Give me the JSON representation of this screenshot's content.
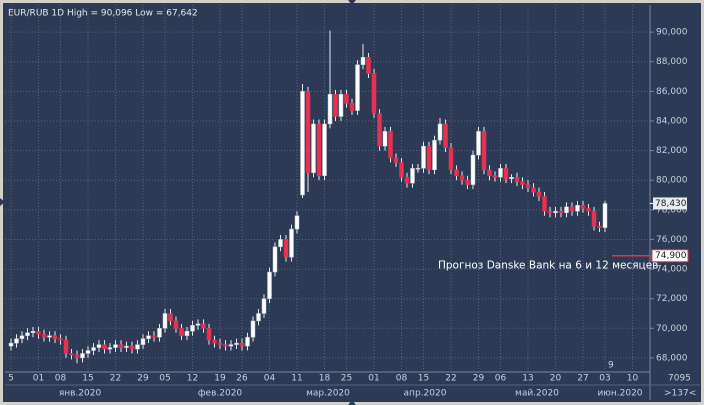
{
  "chart_data": {
    "type": "candlestick",
    "title": "EUR/RUB 1D High = 90,096 Low = 67,642",
    "categories": [
      "5",
      null,
      null,
      null,
      null,
      "01",
      null,
      null,
      null,
      "08",
      null,
      null,
      null,
      null,
      "15",
      null,
      null,
      null,
      null,
      "22",
      null,
      null,
      null,
      null,
      "29",
      null,
      null,
      null,
      "05",
      null,
      null,
      null,
      null,
      "12",
      null,
      null,
      null,
      null,
      "19",
      null,
      null,
      null,
      "26",
      null,
      null,
      null,
      null,
      "04",
      null,
      null,
      null,
      null,
      "11",
      null,
      null,
      null,
      null,
      "18",
      null,
      null,
      null,
      "25",
      null,
      null,
      null,
      null,
      "01",
      null,
      null,
      null,
      null,
      "08",
      null,
      null,
      null,
      "15",
      null,
      null,
      null,
      null,
      "22",
      null,
      null,
      null,
      null,
      "29",
      null,
      null,
      null,
      "06",
      null,
      null,
      null,
      null,
      "13",
      null,
      null,
      null,
      null,
      "20",
      null,
      null,
      null,
      null,
      "27",
      null,
      null,
      null,
      "03",
      null,
      null,
      null,
      null,
      "10"
    ],
    "months": [
      "янв.2020",
      "фев.2020",
      "мар.2020",
      "апр.2020",
      "май.2020",
      "июн.2020"
    ],
    "open": [
      68800,
      69000,
      69300,
      69500,
      69700,
      69800,
      69600,
      69400,
      69500,
      69300,
      69200,
      68300,
      68200,
      68000,
      68300,
      68500,
      68700,
      68900,
      68600,
      68700,
      68900,
      68700,
      68800,
      68600,
      68900,
      69300,
      69500,
      69400,
      70000,
      71000,
      70500,
      70000,
      69500,
      69800,
      70200,
      70300,
      70000,
      69200,
      69000,
      68900,
      68800,
      68900,
      69000,
      68800,
      69400,
      70500,
      71000,
      72000,
      73800,
      75500,
      76000,
      74800,
      76700,
      79000,
      86000,
      80500,
      83800,
      80300,
      83800,
      85800,
      84300,
      85800,
      85200,
      84700,
      87800,
      88300,
      87200,
      84500,
      82300,
      83300,
      81500,
      81200,
      80200,
      79800,
      80800,
      80800,
      82300,
      80700,
      82700,
      83800,
      82200,
      80700,
      80300,
      80000,
      79700,
      81700,
      83300,
      80700,
      80300,
      80200,
      80800,
      80100,
      80200,
      79900,
      79700,
      79500,
      79200,
      78900,
      77900,
      77800,
      77900,
      77800,
      78200,
      77900,
      78300,
      78100,
      77900,
      76900,
      76800,
      null,
      null,
      null,
      null,
      null
    ],
    "high": [
      69300,
      69600,
      69800,
      70000,
      70100,
      70100,
      69900,
      69800,
      69800,
      69600,
      69500,
      68600,
      68500,
      68600,
      68800,
      69000,
      69200,
      69200,
      69000,
      69200,
      69200,
      69100,
      69100,
      69200,
      69600,
      69800,
      69800,
      70300,
      71300,
      71300,
      70800,
      70300,
      70100,
      70500,
      70600,
      70600,
      70300,
      69500,
      69300,
      69200,
      69200,
      69300,
      69300,
      69700,
      70800,
      71300,
      72300,
      74100,
      75800,
      76300,
      76300,
      77000,
      77900,
      86500,
      86300,
      84100,
      84100,
      84100,
      90096,
      86100,
      86100,
      86100,
      85500,
      88100,
      89200,
      88600,
      87500,
      84800,
      83600,
      83600,
      81800,
      81500,
      80500,
      81100,
      81100,
      82600,
      82600,
      83000,
      84200,
      84100,
      82500,
      81000,
      80600,
      80300,
      82000,
      83600,
      83600,
      81000,
      80600,
      81100,
      81100,
      80400,
      80500,
      80200,
      80000,
      79800,
      79500,
      79200,
      78200,
      78200,
      78200,
      78500,
      78500,
      78600,
      78600,
      78400,
      78200,
      77200,
      78600,
      null,
      null,
      null,
      null,
      null
    ],
    "low": [
      68500,
      68700,
      69000,
      69200,
      69400,
      69300,
      69100,
      69100,
      69000,
      68900,
      68000,
      67900,
      67642,
      67700,
      68000,
      68200,
      68400,
      68300,
      68300,
      68400,
      68400,
      68400,
      68300,
      68300,
      68600,
      69000,
      69100,
      69100,
      69700,
      70200,
      69700,
      69200,
      69200,
      69500,
      69900,
      69700,
      68900,
      68700,
      68600,
      68500,
      68500,
      68600,
      68500,
      68500,
      69100,
      70200,
      70700,
      71700,
      73500,
      75200,
      74500,
      74500,
      76400,
      78800,
      79200,
      80200,
      80000,
      80000,
      83500,
      84000,
      84000,
      84900,
      84400,
      84400,
      87500,
      86900,
      84200,
      82000,
      82000,
      81200,
      80900,
      79900,
      79500,
      79500,
      80500,
      80500,
      80400,
      80400,
      82400,
      81900,
      80400,
      80000,
      79700,
      79400,
      79400,
      81400,
      80400,
      80000,
      79900,
      79900,
      79800,
      79800,
      79600,
      79400,
      79200,
      78900,
      78600,
      77600,
      77500,
      77500,
      77500,
      77500,
      77600,
      77600,
      77800,
      77600,
      76600,
      76500,
      76500,
      null,
      null,
      null,
      null,
      null
    ],
    "close": [
      69000,
      69300,
      69500,
      69700,
      69800,
      69600,
      69400,
      69500,
      69300,
      69200,
      68300,
      68200,
      68000,
      68300,
      68500,
      68700,
      68900,
      68600,
      68700,
      68900,
      68700,
      68800,
      68600,
      68900,
      69300,
      69500,
      69400,
      70000,
      71000,
      70500,
      70000,
      69500,
      69800,
      70200,
      70300,
      70000,
      69200,
      69000,
      68900,
      68800,
      68900,
      69000,
      68800,
      69400,
      70500,
      71000,
      72000,
      73800,
      75500,
      76000,
      74800,
      76700,
      77600,
      86000,
      80500,
      83800,
      80300,
      83800,
      85800,
      84300,
      85800,
      85200,
      84700,
      87800,
      88300,
      87200,
      84500,
      82300,
      83300,
      81500,
      81200,
      80200,
      79800,
      80800,
      80800,
      82300,
      80700,
      82700,
      83800,
      82200,
      80700,
      80300,
      80000,
      79700,
      81700,
      83300,
      80700,
      80300,
      80200,
      80800,
      80100,
      80200,
      79900,
      79700,
      79500,
      79200,
      78900,
      77900,
      77800,
      77900,
      77800,
      78200,
      77900,
      78300,
      78100,
      77900,
      76900,
      76800,
      78430,
      null,
      null,
      null,
      null,
      null
    ],
    "up_color": "#ffffff",
    "down_color": "#e8314f",
    "ylim": [
      67050,
      91830
    ],
    "yticks": [
      {
        "value": 68000,
        "label": "68,000"
      },
      {
        "value": 70000,
        "label": "70,000"
      },
      {
        "value": 72000,
        "label": "72,000"
      },
      {
        "value": 74000,
        "label": "74,000"
      },
      {
        "value": 76000,
        "label": "76,000"
      },
      {
        "value": 78000,
        "label": "78,000"
      },
      {
        "value": 80000,
        "label": "80,000"
      },
      {
        "value": 82000,
        "label": "82,000"
      },
      {
        "value": 84000,
        "label": "84,000"
      },
      {
        "value": 86000,
        "label": "86,000"
      },
      {
        "value": 88000,
        "label": "88,000"
      },
      {
        "value": 90000,
        "label": "90,000"
      }
    ],
    "grid": true,
    "last_price": {
      "value": 78430,
      "label": "78,430"
    },
    "forecast": {
      "value": 74900,
      "label": "74,900",
      "text": "Прогноз Danske Bank на 6 и 12 месяцев",
      "color": "#e8314f"
    },
    "corner_count": "9",
    "status": [
      "7095",
      ">137<"
    ]
  }
}
